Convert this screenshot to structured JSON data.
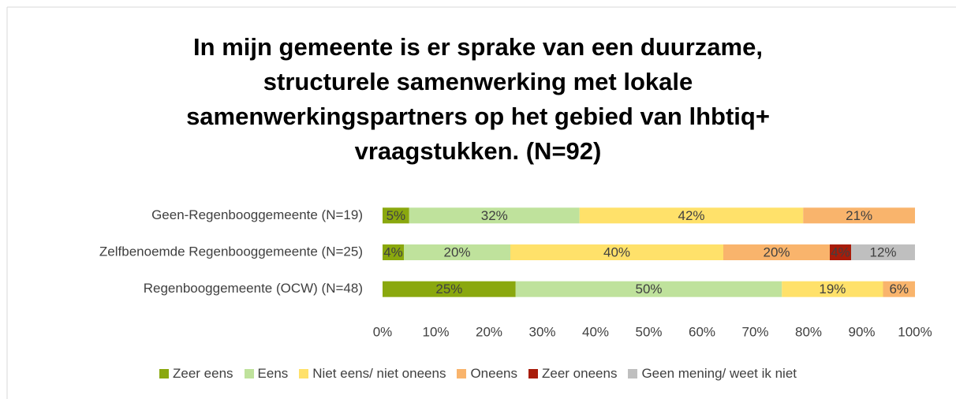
{
  "chart_data": {
    "type": "stacked_bar_horizontal",
    "title": "In mijn gemeente is er sprake van een duurzame, structurele samenwerking met lokale samenwerkingspartners op het gebied van lhbtiq+ vraagstukken. (N=92)",
    "categories": [
      "Geen-Regenbooggemeente (N=19)",
      "Zelfbenoemde Regenbooggemeente (N=25)",
      "Regenbooggemeente (OCW) (N=48)"
    ],
    "series": [
      {
        "name": "Zeer eens",
        "color": "#8aa80e",
        "values": [
          5,
          4,
          25
        ],
        "value_labels": [
          "5%",
          "4%",
          "25%"
        ]
      },
      {
        "name": "Eens",
        "color": "#bfe29c",
        "values": [
          32,
          20,
          50
        ],
        "value_labels": [
          "32%",
          "20%",
          "50%"
        ]
      },
      {
        "name": "Niet eens/ niet oneens",
        "color": "#ffe16a",
        "values": [
          42,
          40,
          19
        ],
        "value_labels": [
          "42%",
          "40%",
          "19%"
        ]
      },
      {
        "name": "Oneens",
        "color": "#f9b46c",
        "values": [
          21,
          20,
          6
        ],
        "value_labels": [
          "21%",
          "20%",
          "6%"
        ]
      },
      {
        "name": "Zeer oneens",
        "color": "#a81c0a",
        "values": [
          null,
          4,
          null
        ],
        "value_labels": [
          null,
          "4%",
          null
        ]
      },
      {
        "name": "Geen mening/ weet ik niet",
        "color": "#bfbfbf",
        "values": [
          null,
          12,
          null
        ],
        "value_labels": [
          null,
          "12%",
          null
        ]
      }
    ],
    "xlim": [
      0,
      100
    ],
    "xticks": [
      {
        "value": 0,
        "label": "0%"
      },
      {
        "value": 10,
        "label": "10%"
      },
      {
        "value": 20,
        "label": "20%"
      },
      {
        "value": 30,
        "label": "30%"
      },
      {
        "value": 40,
        "label": "40%"
      },
      {
        "value": 50,
        "label": "50%"
      },
      {
        "value": 60,
        "label": "60%"
      },
      {
        "value": 70,
        "label": "70%"
      },
      {
        "value": 80,
        "label": "80%"
      },
      {
        "value": 90,
        "label": "90%"
      },
      {
        "value": 100,
        "label": "100%"
      }
    ],
    "legend": "bottom"
  }
}
